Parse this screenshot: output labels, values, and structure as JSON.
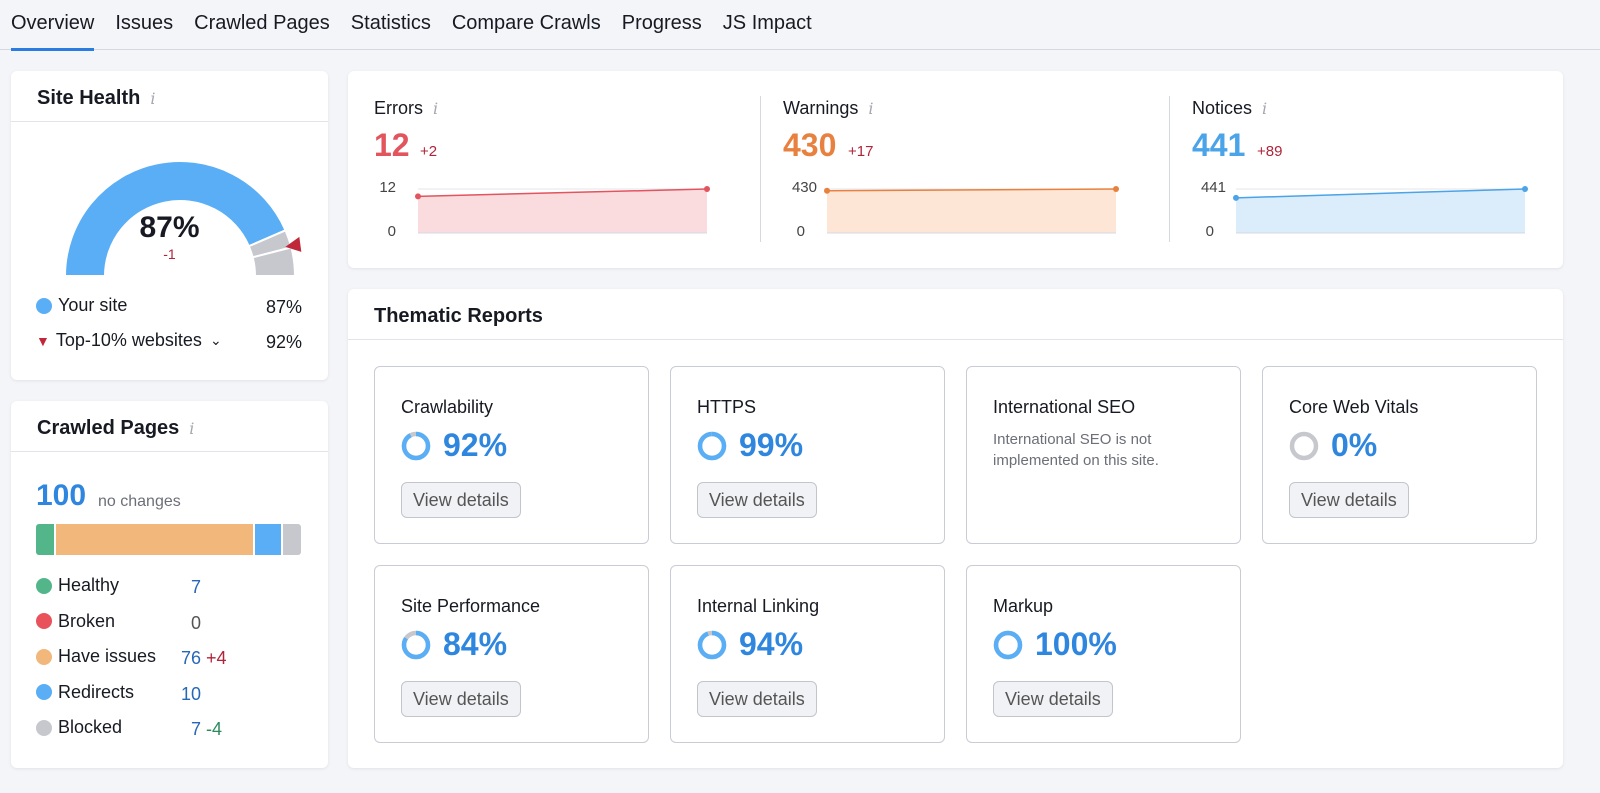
{
  "tabs": [
    "Overview",
    "Issues",
    "Crawled Pages",
    "Statistics",
    "Compare Crawls",
    "Progress",
    "JS Impact"
  ],
  "site_health": {
    "title": "Site Health",
    "value": "87%",
    "percent": 87,
    "top10_percent": 92,
    "delta": "-1",
    "your_site_label": "Your site",
    "your_site_value": "87%",
    "top10_label": "Top-10% websites",
    "top10_value": "92%",
    "colors": {
      "site": "#59aef5",
      "rest": "#c6c8ce",
      "marker": "#c0283a"
    }
  },
  "crawled_pages": {
    "title": "Crawled Pages",
    "total": "100",
    "change": "no changes",
    "items": [
      {
        "label": "Healthy",
        "value": 7,
        "delta": "",
        "color": "#52b68a"
      },
      {
        "label": "Broken",
        "value": 0,
        "delta": "",
        "color": "#e9525a"
      },
      {
        "label": "Have issues",
        "value": 76,
        "delta": "+4",
        "color": "#f2b77a"
      },
      {
        "label": "Redirects",
        "value": 10,
        "delta": "",
        "color": "#59aef5"
      },
      {
        "label": "Blocked",
        "value": 7,
        "delta": "-4",
        "color": "#c6c8ce"
      }
    ]
  },
  "metrics": [
    {
      "label": "Errors",
      "value": "12",
      "delta": "+2",
      "axis_max": "12",
      "axis_min": "0",
      "series": [
        10,
        12
      ],
      "ymax": 12,
      "color": "#e2545e",
      "fill": "#fadcdf"
    },
    {
      "label": "Warnings",
      "value": "430",
      "delta": "+17",
      "axis_max": "430",
      "axis_min": "0",
      "series": [
        413,
        430
      ],
      "ymax": 430,
      "color": "#e8813f",
      "fill": "#fde6d5"
    },
    {
      "label": "Notices",
      "value": "441",
      "delta": "+89",
      "axis_max": "441",
      "axis_min": "0",
      "series": [
        352,
        441
      ],
      "ymax": 441,
      "color": "#4ba3e8",
      "fill": "#dbecfb"
    }
  ],
  "thematic": {
    "title": "Thematic Reports",
    "button": "View details",
    "tiles": [
      {
        "name": "Crawlability",
        "value": "92%",
        "percent": 92
      },
      {
        "name": "HTTPS",
        "value": "99%",
        "percent": 99
      },
      {
        "name": "International SEO",
        "desc": "International SEO is not implemented on this site."
      },
      {
        "name": "Core Web Vitals",
        "value": "0%",
        "percent": 0
      },
      {
        "name": "Site Performance",
        "value": "84%",
        "percent": 84
      },
      {
        "name": "Internal Linking",
        "value": "94%",
        "percent": 94
      },
      {
        "name": "Markup",
        "value": "100%",
        "percent": 100
      }
    ]
  }
}
